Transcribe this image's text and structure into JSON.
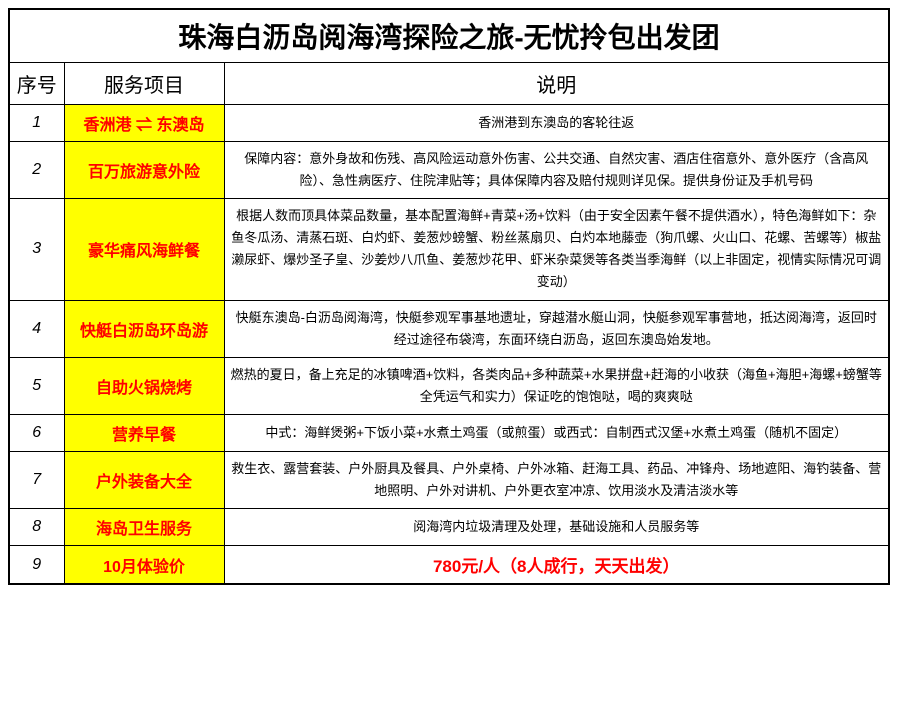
{
  "title": "珠海白沥岛阅海湾探险之旅-无忧拎包出发团",
  "headers": {
    "seq": "序号",
    "svc": "服务项目",
    "desc": "说明"
  },
  "colors": {
    "svc_bg": "#ffff00",
    "svc_fg": "#ff0000",
    "price_fg": "#ff0000"
  },
  "rows": [
    {
      "seq": "1",
      "svc": "香洲港 ⇌ 东澳岛",
      "desc": "香洲港到东澳岛的客轮往返"
    },
    {
      "seq": "2",
      "svc": "百万旅游意外险",
      "desc": "保障内容：意外身故和伤残、高风险运动意外伤害、公共交通、自然灾害、酒店住宿意外、意外医疗（含高风险）、急性病医疗、住院津贴等；具体保障内容及赔付规则详见保。提供身份证及手机号码"
    },
    {
      "seq": "3",
      "svc": "豪华痛风海鲜餐",
      "desc": "根据人数而顶具体菜品数量，基本配置海鲜+青菜+汤+饮料（由于安全因素午餐不提供酒水），特色海鲜如下：杂鱼冬瓜汤、清蒸石斑、白灼虾、姜葱炒螃蟹、粉丝蒸扇贝、白灼本地藤壶（狗爪螺、火山口、花螺、苦螺等）椒盐濑尿虾、爆炒圣子皇、沙姜炒八爪鱼、姜葱炒花甲、虾米杂菜煲等各类当季海鲜（以上非固定，视情实际情况可调变动）"
    },
    {
      "seq": "4",
      "svc": "快艇白沥岛环岛游",
      "desc": "快艇东澳岛-白沥岛阅海湾，快艇参观军事基地遗址，穿越潜水艇山洞，快艇参观军事营地，抵达阅海湾，返回时经过途径布袋湾，东面环绕白沥岛，返回东澳岛始发地。"
    },
    {
      "seq": "5",
      "svc": "自助火锅烧烤",
      "desc": "燃热的夏日，备上充足的冰镇啤酒+饮料，各类肉品+多种蔬菜+水果拼盘+赶海的小收获（海鱼+海胆+海螺+螃蟹等全凭运气和实力）保证吃的饱饱哒，喝的爽爽哒"
    },
    {
      "seq": "6",
      "svc": "营养早餐",
      "desc": "中式：海鲜煲粥+下饭小菜+水煮土鸡蛋（或煎蛋）或西式：自制西式汉堡+水煮土鸡蛋（随机不固定）"
    },
    {
      "seq": "7",
      "svc": "户外装备大全",
      "desc": "救生衣、露营套装、户外厨具及餐具、户外桌椅、户外冰箱、赶海工具、药品、冲锋舟、场地遮阳、海钓装备、营地照明、户外对讲机、户外更衣室冲凉、饮用淡水及清洁淡水等"
    },
    {
      "seq": "8",
      "svc": "海岛卫生服务",
      "desc": "阅海湾内垃圾清理及处理，基础设施和人员服务等"
    },
    {
      "seq": "9",
      "svc": "10月体验价",
      "desc": "780元/人（8人成行，天天出发）",
      "is_price": true
    }
  ]
}
